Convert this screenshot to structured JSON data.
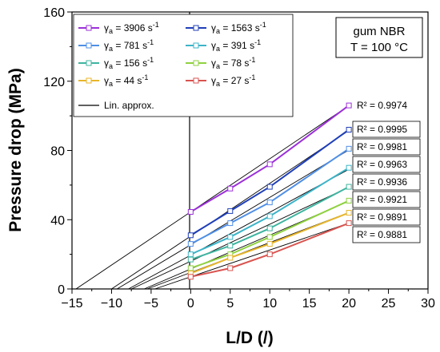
{
  "chart_data": {
    "type": "line",
    "xlabel": "L/D (/)",
    "ylabel": "Pressure drop (MPa)",
    "xlim": [
      -15,
      30
    ],
    "ylim": [
      0,
      160
    ],
    "x_ticks": [
      "−15",
      "−10",
      "−5",
      "0",
      "5",
      "10",
      "15",
      "20",
      "25",
      "30"
    ],
    "y_ticks": [
      "0",
      "40",
      "80",
      "120",
      "160"
    ],
    "annotation": [
      "gum NBR",
      "T = 100 °C"
    ],
    "approx_label": "Lin. approx.",
    "legend_placement": "top-left",
    "x": [
      0,
      5,
      10,
      20
    ],
    "series": [
      {
        "symbol": "γ",
        "sub": "a",
        "value": "3906",
        "unit": "s",
        "exp": "-1",
        "color": "#9b30d9",
        "values": [
          44.5,
          58,
          72,
          106
        ],
        "fit": {
          "intercept": 44.5,
          "slope": 3.07
        },
        "r2": "R² = 0.9974"
      },
      {
        "symbol": "γ",
        "sub": "a",
        "value": "1563",
        "unit": "s",
        "exp": "-1",
        "color": "#1f3fb8",
        "values": [
          31,
          45,
          59,
          92
        ],
        "fit": {
          "intercept": 30.5,
          "slope": 3.05
        },
        "r2": "R² = 0.9995"
      },
      {
        "symbol": "γ",
        "sub": "a",
        "value": "781",
        "unit": "s",
        "exp": "-1",
        "color": "#4f8fe6",
        "values": [
          26,
          38,
          50,
          81
        ],
        "fit": {
          "intercept": 25.5,
          "slope": 2.74
        },
        "r2": "R² = 0.9981"
      },
      {
        "symbol": "γ",
        "sub": "a",
        "value": "391",
        "unit": "s",
        "exp": "-1",
        "color": "#3cb4c8",
        "values": [
          20,
          30,
          42,
          70
        ],
        "fit": {
          "intercept": 19.5,
          "slope": 2.48
        },
        "r2": "R² = 0.9963"
      },
      {
        "symbol": "γ",
        "sub": "a",
        "value": "156",
        "unit": "s",
        "exp": "-1",
        "color": "#3fb4a0",
        "values": [
          17,
          25,
          35,
          59
        ],
        "fit": {
          "intercept": 16,
          "slope": 2.14
        },
        "r2": "R² = 0.9936"
      },
      {
        "symbol": "γ",
        "sub": "a",
        "value": "78",
        "unit": "s",
        "exp": "-1",
        "color": "#8fd13f",
        "values": [
          12,
          20,
          30,
          51
        ],
        "fit": {
          "intercept": 11.5,
          "slope": 1.96
        },
        "r2": "R² = 0.9921"
      },
      {
        "symbol": "γ",
        "sub": "a",
        "value": "44",
        "unit": "s",
        "exp": "-1",
        "color": "#e8b62b",
        "values": [
          9,
          18,
          26,
          44
        ],
        "fit": {
          "intercept": 9.5,
          "slope": 1.73
        },
        "r2": "R² = 0.9891"
      },
      {
        "symbol": "γ",
        "sub": "a",
        "value": "27",
        "unit": "s",
        "exp": "-1",
        "color": "#d9534f",
        "values": [
          7,
          12,
          20,
          38
        ],
        "fit": {
          "intercept": 7,
          "slope": 1.55
        },
        "r2": "R² = 0.9881"
      }
    ]
  }
}
